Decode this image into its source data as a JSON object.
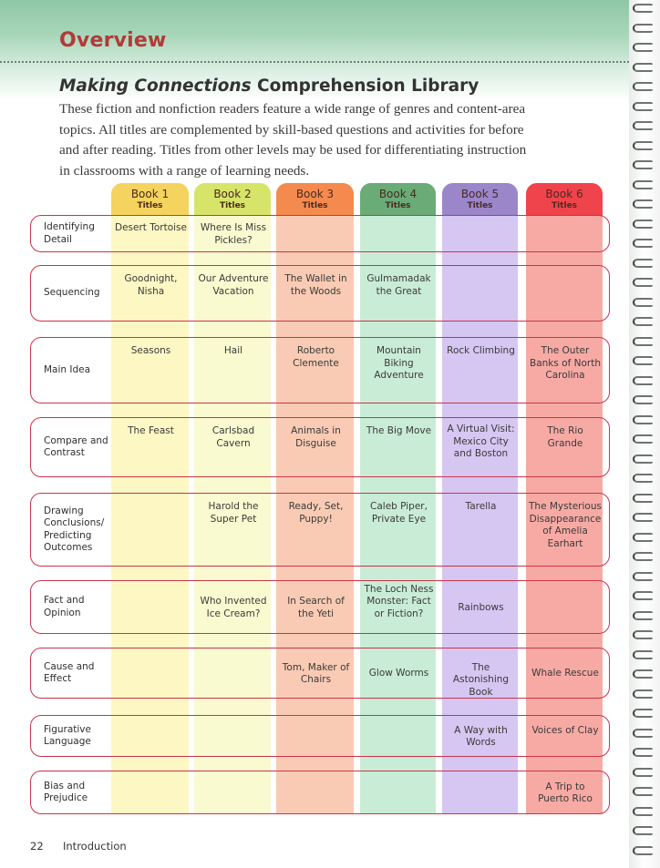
{
  "header": {
    "overview": "Overview",
    "title_italic": "Making Connections",
    "title_rest": " Comprehension Library",
    "intro": "These fiction and nonfiction readers feature a wide range of genres and content-area topics. All titles are complemented by skill-based questions and activities for before and after reading. Titles from other levels may be used for differentiating instruction in classrooms with a range of learning needs."
  },
  "columns": [
    {
      "book": "Book 1",
      "sub": "Titles",
      "head_color": "#f4d35e",
      "body_color": "#fdf7c4"
    },
    {
      "book": "Book 2",
      "sub": "Titles",
      "head_color": "#d7e46a",
      "body_color": "#fafad0"
    },
    {
      "book": "Book 3",
      "sub": "Titles",
      "head_color": "#f58a4f",
      "body_color": "#f9cbb4"
    },
    {
      "book": "Book 4",
      "sub": "Titles",
      "head_color": "#6aab78",
      "body_color": "#c9ecd6"
    },
    {
      "book": "Book 5",
      "sub": "Titles",
      "head_color": "#9b86c9",
      "body_color": "#d6c6f2"
    },
    {
      "book": "Book 6",
      "sub": "Titles",
      "head_color": "#f0444c",
      "body_color": "#f7aaa4"
    }
  ],
  "rows": [
    {
      "skill": "Identifying Detail",
      "titles": [
        "Desert Tortoise",
        "Where Is Miss Pickles?",
        "",
        "",
        "",
        ""
      ]
    },
    {
      "skill": "Sequencing",
      "titles": [
        "Goodnight, Nisha",
        "Our Adventure Vacation",
        "The Wallet in the Woods",
        "Gulmamadak the Great",
        "",
        ""
      ]
    },
    {
      "skill": "Main Idea",
      "titles": [
        "Seasons",
        "Hail",
        "Roberto Clemente",
        "Mountain Biking Adventure",
        "Rock Climbing",
        "The Outer Banks of North Carolina"
      ]
    },
    {
      "skill": "Compare and Contrast",
      "titles": [
        "The Feast",
        "Carlsbad Cavern",
        "Animals in Disguise",
        "The Big Move",
        "A Virtual Visit: Mexico City and Boston",
        "The Rio Grande"
      ]
    },
    {
      "skill": "Drawing Conclusions/ Predicting Outcomes",
      "titles": [
        "",
        "Harold the Super Pet",
        "Ready, Set, Puppy!",
        "Caleb Piper, Private Eye",
        "Tarella",
        "The Mysterious Disappearance of Amelia Earhart"
      ]
    },
    {
      "skill": "Fact and Opinion",
      "titles": [
        "",
        "Who Invented Ice Cream?",
        "In Search of the Yeti",
        "The Loch Ness Monster: Fact or Fiction?",
        "Rainbows",
        ""
      ]
    },
    {
      "skill": "Cause and Effect",
      "titles": [
        "",
        "",
        "Tom, Maker of Chairs",
        "Glow Worms",
        "The Astonishing Book",
        "Whale Rescue"
      ]
    },
    {
      "skill": "Figurative Language",
      "titles": [
        "",
        "",
        "",
        "",
        "A Way with Words",
        "Voices of Clay"
      ]
    },
    {
      "skill": "Bias and Prejudice",
      "titles": [
        "",
        "",
        "",
        "",
        "",
        "A Trip to Puerto Rico"
      ]
    }
  ],
  "footer": {
    "page_number": "22",
    "section": "Introduction"
  }
}
